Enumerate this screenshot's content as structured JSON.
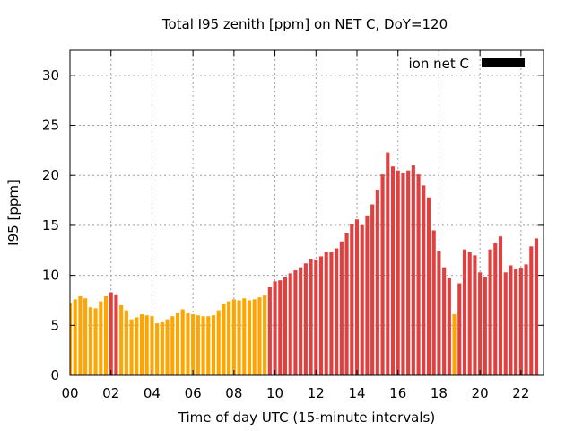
{
  "chart_data": {
    "type": "bar",
    "title": "Total I95 zenith [ppm] on NET C, DoY=120",
    "xlabel": "Time of day UTC (15-minute intervals)",
    "ylabel": "I95 [ppm]",
    "xlim": [
      0,
      23.1
    ],
    "ylim": [
      0,
      32.5
    ],
    "x_ticks": [
      "00",
      "02",
      "04",
      "06",
      "08",
      "10",
      "12",
      "14",
      "16",
      "18",
      "20",
      "22"
    ],
    "x_tick_values": [
      0,
      2,
      4,
      6,
      8,
      10,
      12,
      14,
      16,
      18,
      20,
      22
    ],
    "y_ticks": [
      0,
      5,
      10,
      15,
      20,
      25,
      30
    ],
    "grid": true,
    "legend": {
      "label": "ion net C",
      "color": "#000000",
      "position": "top-right"
    },
    "colors": {
      "low": "#ffa500",
      "high": "#e04040"
    },
    "series": [
      {
        "values": [
          7.2,
          7.6,
          7.9,
          7.7,
          6.8,
          6.7,
          7.4,
          7.9,
          8.3,
          8.1,
          7.0,
          6.5,
          5.6,
          5.8,
          6.1,
          6.0,
          5.9,
          5.2,
          5.3,
          5.6,
          5.9,
          6.2,
          6.6,
          6.2,
          6.1,
          6.0,
          5.9,
          5.9,
          6.0,
          6.5,
          7.1,
          7.4,
          7.6,
          7.5,
          7.7,
          7.5,
          7.6,
          7.8,
          8.0,
          8.8,
          9.4,
          9.5,
          9.8,
          10.2,
          10.5,
          10.8,
          11.2,
          11.6,
          11.5,
          11.9,
          12.3,
          12.3,
          12.7,
          13.4,
          14.2,
          15.1,
          15.6,
          15.0,
          16.0,
          17.1,
          18.5,
          20.1,
          22.3,
          20.9,
          20.5,
          20.2,
          20.5,
          21.0,
          20.1,
          19.0,
          17.8,
          14.5,
          12.4,
          10.8,
          9.7,
          6.1,
          9.2,
          12.6,
          12.3,
          12.0,
          10.3,
          9.8,
          12.6,
          13.2,
          13.9,
          10.3,
          11.0,
          10.6,
          10.7,
          11.1,
          12.9,
          13.7
        ],
        "high_flags": [
          0,
          0,
          0,
          0,
          0,
          0,
          0,
          0,
          1,
          1,
          0,
          0,
          0,
          0,
          0,
          0,
          0,
          0,
          0,
          0,
          0,
          0,
          0,
          0,
          0,
          0,
          0,
          0,
          0,
          0,
          0,
          0,
          0,
          0,
          0,
          0,
          0,
          0,
          0,
          1,
          1,
          1,
          1,
          1,
          1,
          1,
          1,
          1,
          1,
          1,
          1,
          1,
          1,
          1,
          1,
          1,
          1,
          1,
          1,
          1,
          1,
          1,
          1,
          1,
          1,
          1,
          1,
          1,
          1,
          1,
          1,
          1,
          1,
          1,
          1,
          0,
          1,
          1,
          1,
          1,
          1,
          1,
          1,
          1,
          1,
          1,
          1,
          1,
          1,
          1,
          1,
          1
        ]
      }
    ]
  }
}
